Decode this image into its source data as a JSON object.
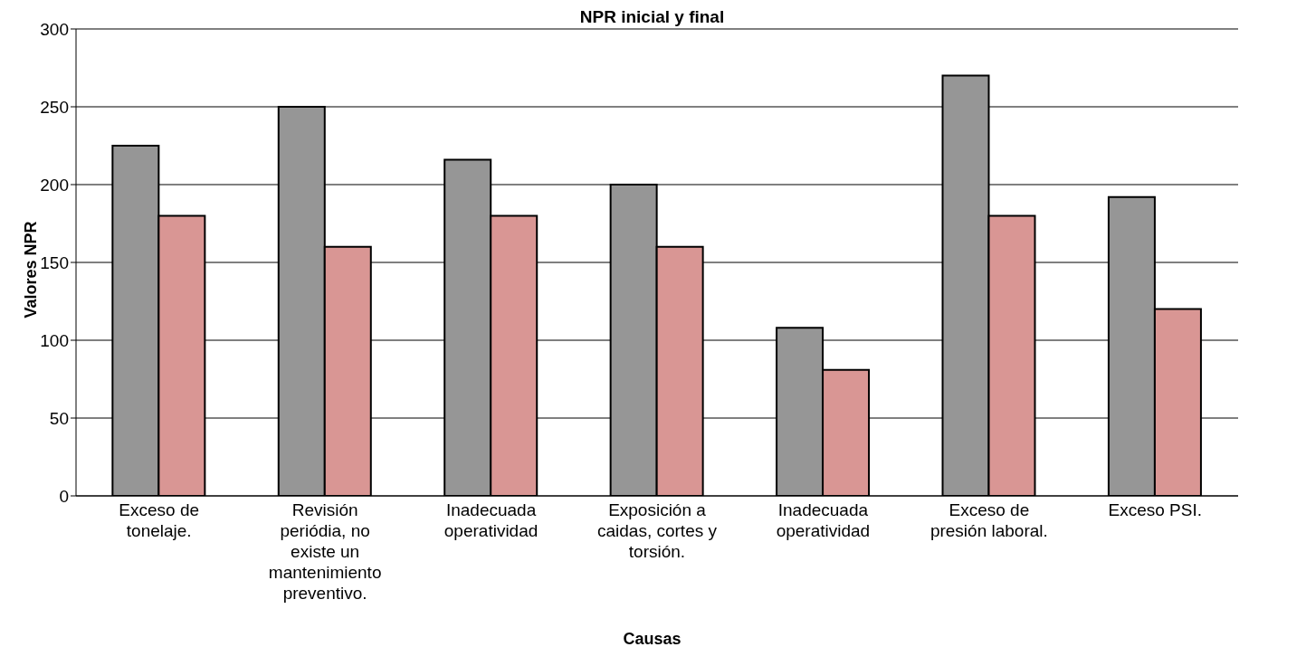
{
  "chart_data": {
    "type": "bar",
    "title": "NPR inicial y final",
    "xlabel": "Causas",
    "ylabel": "Valores NPR",
    "categories": [
      "Exceso de tonelaje.",
      "Revisión periódia, no existe un mantenimiento preventivo.",
      "Inadecuada operatividad",
      "Exposición a caidas, cortes y torsión.",
      "Inadecuada operatividad",
      "Exceso de presión laboral.",
      "Exceso PSI."
    ],
    "series": [
      {
        "color": "#969696",
        "values": [
          225,
          250,
          216,
          200,
          108,
          270,
          192
        ]
      },
      {
        "color": "#d99694",
        "values": [
          180,
          160,
          180,
          160,
          81,
          180,
          120
        ]
      }
    ],
    "ylim": [
      0,
      300
    ],
    "yticks": [
      0,
      50,
      100,
      150,
      200,
      250,
      300
    ],
    "grid": "y",
    "legend": false
  }
}
